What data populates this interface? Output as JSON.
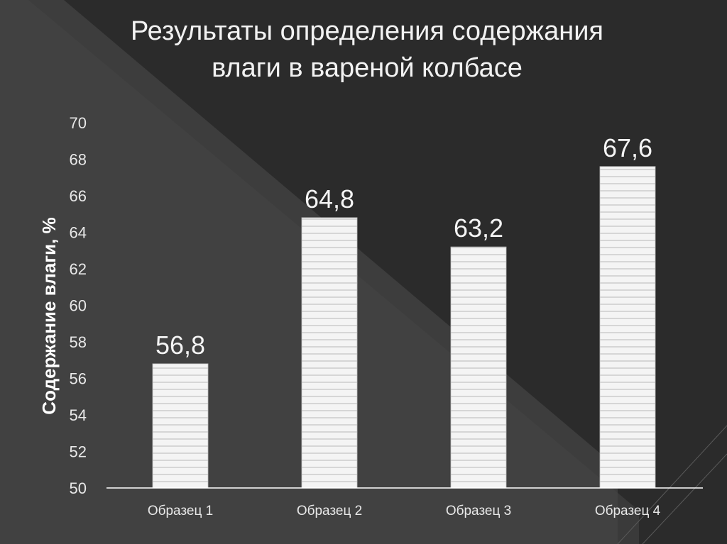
{
  "slide": {
    "title_line1": "Результаты определения содержания",
    "title_line2": "влаги в вареной колбасе"
  },
  "colors": {
    "background_dark": "#2b2b2b",
    "background_light": "#444444",
    "bar_fill": "#f4f4f4",
    "bar_stripe": "#c9c9c9",
    "axis": "#ffffff",
    "text": "#e8e8e8"
  },
  "chart_data": {
    "type": "bar",
    "title": "Результаты определения содержания влаги в вареной колбасе",
    "categories": [
      "Образец 1",
      "Образец 2",
      "Образец 3",
      "Образец 4"
    ],
    "values": [
      56.8,
      64.8,
      63.2,
      67.6
    ],
    "value_labels": [
      "56,8",
      "64,8",
      "63,2",
      "67,6"
    ],
    "ylabel": "Содержание влаги, %",
    "xlabel": "",
    "ylim": [
      50,
      70
    ],
    "yticks": [
      50,
      52,
      54,
      56,
      58,
      60,
      62,
      64,
      66,
      68,
      70
    ],
    "grid": false,
    "legend": "none"
  }
}
